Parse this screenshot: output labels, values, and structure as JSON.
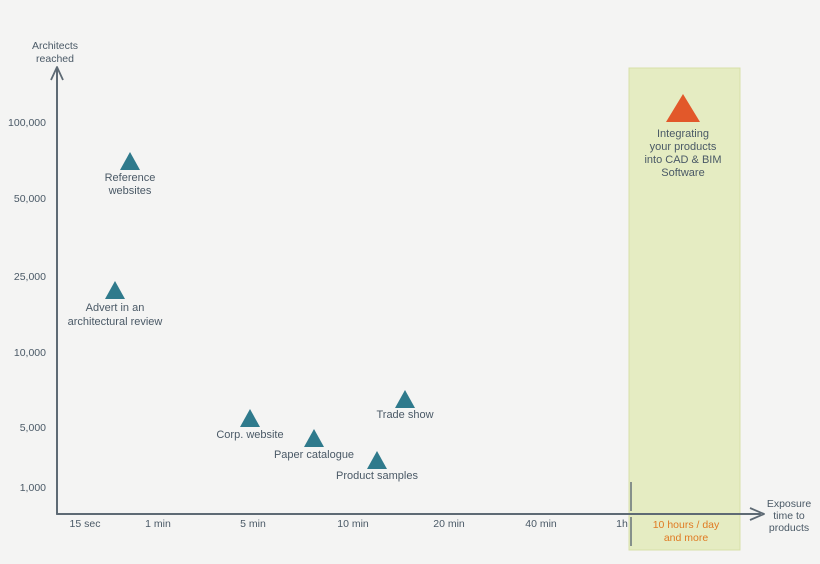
{
  "chart_data": {
    "type": "scatter",
    "title": "",
    "ylabel": [
      "Architects",
      "reached"
    ],
    "xlabel": [
      "Exposure",
      "time to",
      "products"
    ],
    "y_ticks": [
      "100,000",
      "50,000",
      "25,000",
      "10,000",
      "5,000",
      "1,000"
    ],
    "x_ticks": [
      "15 sec",
      "1 min",
      "5 min",
      "10 min",
      "20 min",
      "40 min",
      "1h"
    ],
    "highlight_label": [
      "10 hours / day",
      "and more"
    ],
    "colors": {
      "marker": "#2f7a8c",
      "highlight_marker": "#e2582a",
      "highlight_band": "#e5ecc2",
      "axis": "#5e6a74",
      "label": "#4a5966",
      "highlight_text": "#e07a22"
    },
    "points": [
      {
        "label": [
          "Reference",
          "websites"
        ],
        "exposure": "15 sec – 1 min",
        "architects": 60000,
        "highlight": false
      },
      {
        "label": [
          "Advert in an",
          "architectural review"
        ],
        "exposure": "15 sec – 1 min",
        "architects": 20000,
        "highlight": false
      },
      {
        "label": [
          "Corp. website"
        ],
        "exposure": "5 min",
        "architects": 5500,
        "highlight": false
      },
      {
        "label": [
          "Paper catalogue"
        ],
        "exposure": "5 – 10 min",
        "architects": 4000,
        "highlight": false
      },
      {
        "label": [
          "Product samples"
        ],
        "exposure": "10 min",
        "architects": 2500,
        "highlight": false
      },
      {
        "label": [
          "Trade show"
        ],
        "exposure": "10 – 20 min",
        "architects": 6500,
        "highlight": false
      },
      {
        "label": [
          "Integrating",
          "your products",
          "into CAD & BIM",
          "Software"
        ],
        "exposure": "10 hours / day and more",
        "architects": 150000,
        "highlight": true
      }
    ]
  }
}
